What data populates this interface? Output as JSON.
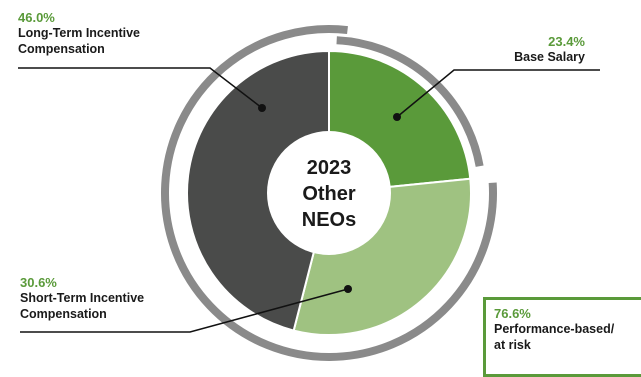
{
  "chart_data": {
    "type": "pie",
    "center_label": [
      "2023",
      "Other",
      "NEOs"
    ],
    "slices": [
      {
        "label_lines": [
          "Base Salary"
        ],
        "value": 23.4,
        "value_label": "23.4%",
        "color": "#5a9a3a"
      },
      {
        "label_lines": [
          "Short-Term Incentive",
          "Compensation"
        ],
        "value": 30.6,
        "value_label": "30.6%",
        "color": "#9fc281"
      },
      {
        "label_lines": [
          "Long-Term Incentive",
          "Compensation"
        ],
        "value": 46.0,
        "value_label": "46.0%",
        "color": "#4a4b4a"
      }
    ],
    "callout": {
      "value_label": "76.6%",
      "label_lines": [
        "Performance-based/",
        "at risk"
      ],
      "color": "#5a9a3a"
    },
    "ring_color": "#8a8a8a"
  }
}
